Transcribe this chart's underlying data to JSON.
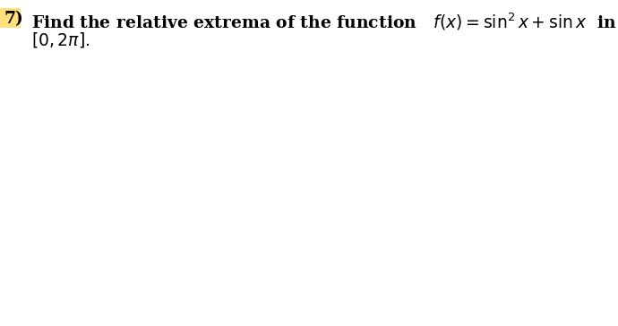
{
  "number": "7)",
  "number_highlight_color": "#FFE07A",
  "line1_text": "Find the relative extrema of the function",
  "func_math": "$f(x)=\\sin^2 x+\\sin x$",
  "line1_suffix": "  in the interval",
  "line2_text": "$[0,2\\pi].$",
  "font_size": 13.5,
  "background_color": "#ffffff",
  "text_color": "#000000",
  "fig_width": 6.9,
  "fig_height": 3.64,
  "dpi": 100
}
